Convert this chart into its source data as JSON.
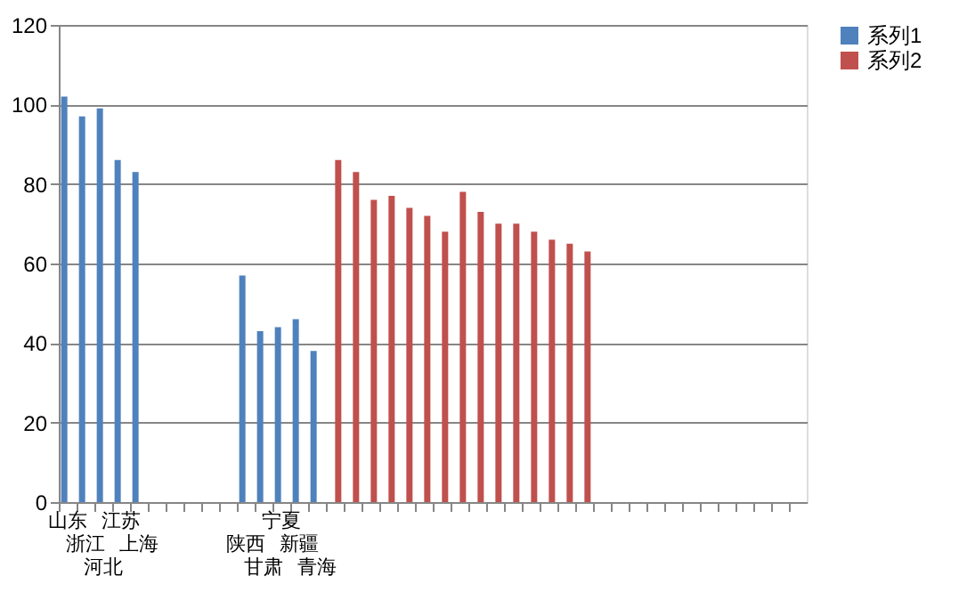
{
  "chart_data": {
    "type": "bar",
    "categories": [
      "山东",
      "浙江",
      "河北",
      "江苏",
      "上海",
      null,
      null,
      null,
      null,
      null,
      "陕西",
      "甘肃",
      "宁夏",
      "新疆",
      "青海",
      null,
      null,
      null,
      null,
      null,
      null,
      null,
      null,
      null,
      null,
      null,
      null,
      null,
      null,
      null,
      null,
      null,
      null,
      null,
      null,
      null,
      null,
      null,
      null,
      null,
      null,
      null
    ],
    "series": [
      {
        "name": "系列1",
        "color": "#4f81bd",
        "values": [
          102,
          97,
          99,
          86,
          83,
          null,
          null,
          null,
          null,
          null,
          57,
          43,
          44,
          46,
          38,
          null,
          null,
          null,
          null,
          null,
          null,
          null,
          null,
          null,
          null,
          null,
          null,
          null,
          null,
          null,
          null,
          null,
          null,
          null,
          null,
          null,
          null,
          null,
          null,
          null,
          null,
          null
        ]
      },
      {
        "name": "系列2",
        "color": "#c0504d",
        "values": [
          null,
          null,
          null,
          null,
          null,
          null,
          null,
          null,
          null,
          null,
          null,
          null,
          null,
          null,
          null,
          86,
          83,
          76,
          77,
          74,
          72,
          68,
          78,
          73,
          70,
          70,
          68,
          66,
          65,
          63,
          null,
          null,
          null,
          null,
          null,
          null,
          null,
          null,
          null,
          null,
          null,
          null
        ]
      }
    ],
    "ylim": [
      0,
      120
    ],
    "yticks": [
      0,
      20,
      40,
      60,
      80,
      100,
      120
    ],
    "grid": "y",
    "legend": "right"
  }
}
